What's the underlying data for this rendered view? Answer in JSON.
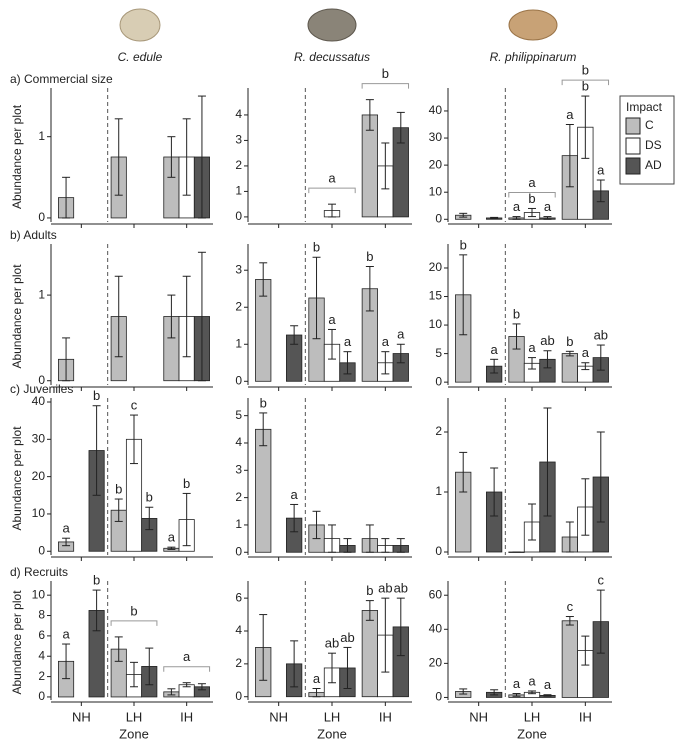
{
  "species": [
    "C. edule",
    "R. decussatus",
    "R. philippinarum"
  ],
  "legend_title": "Impact",
  "chart_data": [
    {
      "type": "bar",
      "title": "a) Commercial size",
      "ylabel": "Abundance per plot",
      "ylim": [
        -0.05,
        1.55
      ],
      "yticks": [
        0,
        1
      ],
      "series": [
        {
          "color": "#bdbdbd",
          "values": [
            0.25,
            0.75,
            0.75
          ],
          "errors": [
            0.25,
            0.47,
            0.25
          ],
          "letters": [
            null,
            null,
            null
          ]
        },
        {
          "color": "#ffffff",
          "values": [
            null,
            null,
            0.75
          ],
          "errors": [
            null,
            null,
            0.47
          ],
          "letters": [
            null,
            null,
            null
          ]
        },
        {
          "color": "#555555",
          "values": [
            null,
            null,
            0.75
          ],
          "errors": [
            null,
            null,
            0.75
          ],
          "letters": [
            null,
            null,
            null
          ]
        }
      ],
      "group_letters": [
        null,
        null,
        null
      ]
    },
    {
      "type": "bar",
      "ylim": [
        -0.2,
        4.9
      ],
      "yticks": [
        0,
        1,
        2,
        3,
        4
      ],
      "series": [
        {
          "color": "#bdbdbd",
          "values": [
            null,
            null,
            4
          ],
          "errors": [
            null,
            null,
            0.6
          ],
          "letters": [
            null,
            null,
            null
          ]
        },
        {
          "color": "#ffffff",
          "values": [
            null,
            0.25,
            2
          ],
          "errors": [
            null,
            0.25,
            0.9
          ],
          "letters": [
            null,
            null,
            null
          ]
        },
        {
          "color": "#555555",
          "values": [
            null,
            null,
            3.5
          ],
          "errors": [
            null,
            null,
            0.6
          ],
          "letters": [
            null,
            null,
            null
          ]
        }
      ],
      "group_letters": [
        null,
        "a",
        "b"
      ]
    },
    {
      "type": "bar",
      "ylim": [
        -1,
        47
      ],
      "yticks": [
        0,
        10,
        20,
        30,
        40
      ],
      "legend": "right",
      "series": [
        {
          "name": "C",
          "color": "#bdbdbd",
          "values": [
            1.5,
            0.5,
            23.5
          ],
          "errors": [
            0.7,
            0.5,
            11.5
          ],
          "letters": [
            null,
            "a",
            "a"
          ]
        },
        {
          "name": "DS",
          "color": "#ffffff",
          "values": [
            null,
            2.5,
            34
          ],
          "errors": [
            null,
            1.5,
            11.5
          ],
          "letters": [
            null,
            "b",
            "b"
          ]
        },
        {
          "name": "AD",
          "color": "#555555",
          "values": [
            0.5,
            0.5,
            10.5
          ],
          "errors": [
            0.2,
            0.5,
            4
          ],
          "letters": [
            null,
            "a",
            "a"
          ]
        }
      ],
      "group_letters": [
        null,
        "a",
        "b"
      ]
    },
    {
      "type": "bar",
      "title": "b) Adults",
      "ylabel": "Abundance per plot",
      "ylim": [
        -0.05,
        1.55
      ],
      "yticks": [
        0,
        1
      ],
      "series": [
        {
          "color": "#bdbdbd",
          "values": [
            0.25,
            0.75,
            0.75
          ],
          "errors": [
            0.25,
            0.47,
            0.25
          ],
          "letters": [
            null,
            null,
            null
          ]
        },
        {
          "color": "#ffffff",
          "values": [
            null,
            null,
            0.75
          ],
          "errors": [
            null,
            null,
            0.47
          ],
          "letters": [
            null,
            null,
            null
          ]
        },
        {
          "color": "#555555",
          "values": [
            null,
            null,
            0.75
          ],
          "errors": [
            null,
            null,
            0.75
          ],
          "letters": [
            null,
            null,
            null
          ]
        }
      ],
      "group_letters": [
        null,
        null,
        null
      ]
    },
    {
      "type": "bar",
      "ylim": [
        -0.1,
        3.6
      ],
      "yticks": [
        0,
        1,
        2,
        3
      ],
      "series": [
        {
          "color": "#bdbdbd",
          "values": [
            2.75,
            2.25,
            2.5
          ],
          "errors": [
            0.45,
            1.1,
            0.6
          ],
          "letters": [
            null,
            "b",
            "b"
          ]
        },
        {
          "color": "#ffffff",
          "values": [
            null,
            1,
            0.5
          ],
          "errors": [
            null,
            0.4,
            0.3
          ],
          "letters": [
            null,
            "a",
            "a"
          ]
        },
        {
          "color": "#555555",
          "values": [
            1.25,
            0.5,
            0.75
          ],
          "errors": [
            0.25,
            0.3,
            0.25
          ],
          "letters": [
            null,
            "a",
            "a"
          ]
        }
      ],
      "group_letters": [
        null,
        null,
        null
      ]
    },
    {
      "type": "bar",
      "ylim": [
        -0.5,
        23.5
      ],
      "yticks": [
        0,
        5,
        10,
        15,
        20
      ],
      "series": [
        {
          "color": "#bdbdbd",
          "values": [
            15.3,
            8,
            5
          ],
          "errors": [
            7,
            2.2,
            0.4
          ],
          "letters": [
            "b",
            "b",
            "b"
          ]
        },
        {
          "color": "#ffffff",
          "values": [
            null,
            3.3,
            2.8
          ],
          "errors": [
            null,
            1,
            0.6
          ],
          "letters": [
            null,
            "a",
            "a"
          ]
        },
        {
          "color": "#555555",
          "values": [
            2.8,
            4,
            4.3
          ],
          "errors": [
            1.2,
            1.5,
            2.2
          ],
          "letters": [
            "a",
            "ab",
            "ab"
          ]
        }
      ],
      "group_letters": [
        null,
        null,
        null
      ]
    },
    {
      "type": "bar",
      "title": "c) Juveniles",
      "ylabel": "Abundance per plot",
      "ylim": [
        -1,
        40
      ],
      "yticks": [
        0,
        10,
        20,
        30,
        40
      ],
      "series": [
        {
          "color": "#bdbdbd",
          "values": [
            2.5,
            11,
            0.8
          ],
          "errors": [
            1,
            3,
            0.3
          ],
          "letters": [
            "a",
            "b",
            "a"
          ]
        },
        {
          "color": "#ffffff",
          "values": [
            null,
            30,
            8.5
          ],
          "errors": [
            null,
            6.5,
            7
          ],
          "letters": [
            null,
            "c",
            "b"
          ]
        },
        {
          "color": "#555555",
          "values": [
            27,
            8.8,
            null
          ],
          "errors": [
            12,
            3,
            null
          ],
          "letters": [
            "b",
            "b",
            null
          ]
        }
      ],
      "group_letters": [
        null,
        null,
        null
      ]
    },
    {
      "type": "bar",
      "ylim": [
        -0.1,
        5.5
      ],
      "yticks": [
        0,
        1,
        2,
        3,
        4,
        5
      ],
      "series": [
        {
          "color": "#bdbdbd",
          "values": [
            4.5,
            1,
            0.5
          ],
          "errors": [
            0.6,
            0.5,
            0.5
          ],
          "letters": [
            "b",
            null,
            null
          ]
        },
        {
          "color": "#ffffff",
          "values": [
            null,
            0.5,
            0.25
          ],
          "errors": [
            null,
            0.5,
            0.25
          ],
          "letters": [
            null,
            null,
            null
          ]
        },
        {
          "color": "#555555",
          "values": [
            1.25,
            0.25,
            0.25
          ],
          "errors": [
            0.5,
            0.25,
            0.25
          ],
          "letters": [
            "a",
            null,
            null
          ]
        }
      ],
      "group_letters": [
        null,
        null,
        null
      ]
    },
    {
      "type": "bar",
      "ylim": [
        -0.05,
        2.5
      ],
      "yticks": [
        0,
        1,
        2
      ],
      "series": [
        {
          "color": "#bdbdbd",
          "values": [
            1.33,
            0,
            0.25
          ],
          "errors": [
            0.33,
            0,
            0.25
          ],
          "letters": [
            null,
            null,
            null
          ]
        },
        {
          "color": "#ffffff",
          "values": [
            null,
            0.5,
            0.75
          ],
          "errors": [
            null,
            0.3,
            0.47
          ],
          "letters": [
            null,
            null,
            null
          ]
        },
        {
          "color": "#555555",
          "values": [
            1,
            1.5,
            1.25
          ],
          "errors": [
            0.4,
            0.9,
            0.75
          ],
          "letters": [
            null,
            null,
            null
          ]
        }
      ],
      "group_letters": [
        null,
        null,
        null
      ]
    },
    {
      "type": "bar",
      "title": "d) Recruits",
      "ylabel": "Abundance per plot",
      "xlabel": "Zone",
      "categories": [
        "NH",
        "LH",
        "IH"
      ],
      "ylim": [
        -0.3,
        11
      ],
      "yticks": [
        0,
        2,
        4,
        6,
        8,
        10
      ],
      "series": [
        {
          "color": "#bdbdbd",
          "values": [
            3.5,
            4.7,
            0.5
          ],
          "errors": [
            1.7,
            1.2,
            0.3
          ],
          "letters": [
            "a",
            null,
            null
          ]
        },
        {
          "color": "#ffffff",
          "values": [
            null,
            2.2,
            1.2
          ],
          "errors": [
            null,
            1.2,
            0.2
          ],
          "letters": [
            null,
            null,
            null
          ]
        },
        {
          "color": "#555555",
          "values": [
            8.5,
            3,
            1
          ],
          "errors": [
            2,
            1.8,
            0.3
          ],
          "letters": [
            "b",
            null,
            null
          ]
        }
      ],
      "group_letters": [
        null,
        "b",
        "a"
      ]
    },
    {
      "type": "bar",
      "xlabel": "Zone",
      "categories": [
        "NH",
        "LH",
        "IH"
      ],
      "ylim": [
        -0.2,
        6.8
      ],
      "yticks": [
        0,
        2,
        4,
        6
      ],
      "series": [
        {
          "color": "#bdbdbd",
          "values": [
            3,
            0.25,
            5.25
          ],
          "errors": [
            2,
            0.25,
            0.6
          ],
          "letters": [
            null,
            "a",
            "b"
          ]
        },
        {
          "color": "#ffffff",
          "values": [
            null,
            1.75,
            3.75
          ],
          "errors": [
            null,
            0.9,
            2.25
          ],
          "letters": [
            null,
            "ab",
            "ab"
          ]
        },
        {
          "color": "#555555",
          "values": [
            2,
            1.75,
            4.25
          ],
          "errors": [
            1.4,
            1.25,
            1.75
          ],
          "letters": [
            null,
            "ab",
            "ab"
          ]
        }
      ],
      "group_letters": [
        null,
        null,
        null
      ]
    },
    {
      "type": "bar",
      "xlabel": "Zone",
      "categories": [
        "NH",
        "LH",
        "IH"
      ],
      "ylim": [
        -1.5,
        66
      ],
      "yticks": [
        0,
        20,
        40,
        60
      ],
      "series": [
        {
          "color": "#bdbdbd",
          "values": [
            3.5,
            1.5,
            45
          ],
          "errors": [
            1.5,
            0.8,
            2.5
          ],
          "letters": [
            null,
            "a",
            "c"
          ]
        },
        {
          "color": "#ffffff",
          "values": [
            null,
            3,
            27.5
          ],
          "errors": [
            null,
            0.8,
            8.5
          ],
          "letters": [
            null,
            "a",
            null
          ]
        },
        {
          "color": "#555555",
          "values": [
            3,
            1.2,
            44.5
          ],
          "errors": [
            1.5,
            0.4,
            18.5
          ],
          "letters": [
            null,
            "a",
            "c"
          ]
        }
      ],
      "group_letters": [
        null,
        null,
        null
      ]
    }
  ]
}
